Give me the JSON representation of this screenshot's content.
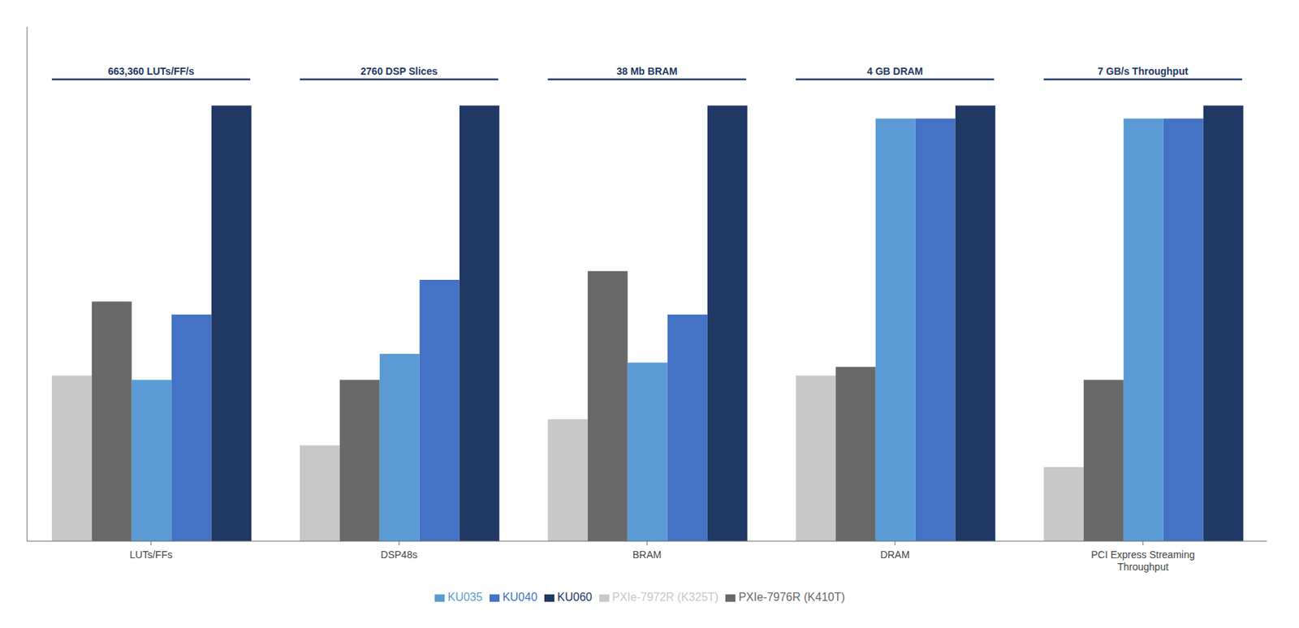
{
  "chart_data": {
    "type": "bar",
    "categories": [
      "LUTs/FFs",
      "DSP48s",
      "BRAM",
      "DRAM",
      "PCI Express Streaming\nThroughput"
    ],
    "series": [
      {
        "name": "PXIe-7972R (K325T)",
        "color": "#c8c8c8",
        "values": [
          0.38,
          0.22,
          0.28,
          0.38,
          0.17
        ]
      },
      {
        "name": "PXIe-7976R (K410T)",
        "color": "#696969",
        "values": [
          0.55,
          0.37,
          0.62,
          0.4,
          0.37
        ]
      },
      {
        "name": "KU035",
        "color": "#5b9bd5",
        "values": [
          0.37,
          0.43,
          0.41,
          0.97,
          0.97
        ]
      },
      {
        "name": "KU040",
        "color": "#4472c4",
        "values": [
          0.52,
          0.6,
          0.52,
          0.97,
          0.97
        ]
      },
      {
        "name": "KU060",
        "color": "#1f3864",
        "values": [
          1.0,
          1.0,
          1.0,
          1.0,
          1.0
        ]
      }
    ],
    "ylim": [
      0,
      1.18
    ],
    "grid": false,
    "legend": "bottom",
    "tick_labels": "x",
    "annotations": [
      {
        "category": "LUTs/FFs",
        "text": "663,360 LUTs/FF/s",
        "y": 1.06,
        "color": "#1f3864"
      },
      {
        "category": "DSP48s",
        "text": "2760 DSP Slices",
        "y": 1.06,
        "color": "#1f3864"
      },
      {
        "category": "BRAM",
        "text": "38 Mb BRAM",
        "y": 1.06,
        "color": "#1f3864"
      },
      {
        "category": "DRAM",
        "text": "4 GB DRAM",
        "y": 1.06,
        "color": "#1f3864"
      },
      {
        "category": "PCI Express Streaming\nThroughput",
        "text": "7 GB/s Throughput",
        "y": 1.06,
        "color": "#1f3864"
      }
    ]
  }
}
